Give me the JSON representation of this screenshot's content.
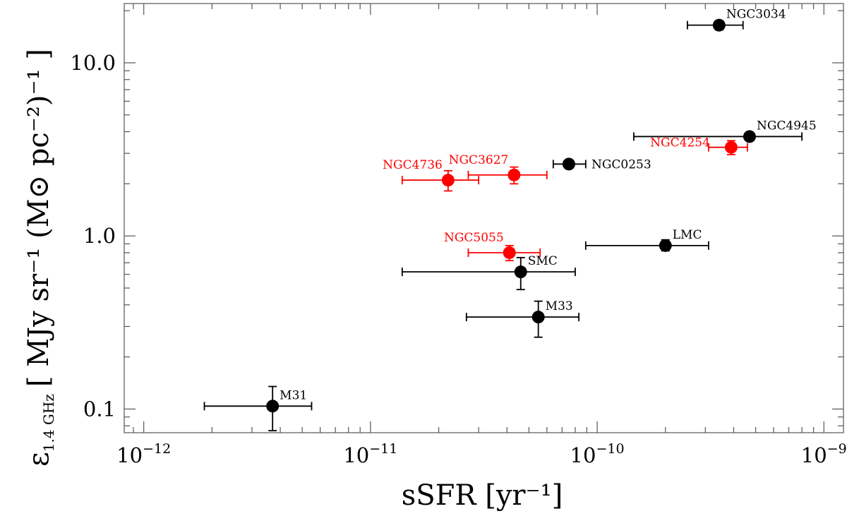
{
  "chart_data": {
    "type": "scatter",
    "title": "",
    "xlabel": "sSFR [yr⁻¹]",
    "ylabel": "ε 1.4 GHz [ MJy sr⁻¹ (M⊙ pc⁻²)⁻¹ ]",
    "ylabel_parts": {
      "symbol": "ε",
      "subscript": "1.4 GHz",
      "units": "[ MJy sr⁻¹ (M⊙ pc⁻²)⁻¹ ]"
    },
    "xscale": "log",
    "yscale": "log",
    "xlim": [
      8.2e-13,
      1.22e-09
    ],
    "ylim": [
      0.073,
      22
    ],
    "x_ticks": [
      {
        "value": 1e-12,
        "base": "10",
        "exp": "−12"
      },
      {
        "value": 1e-11,
        "base": "10",
        "exp": "−11"
      },
      {
        "value": 1e-10,
        "base": "10",
        "exp": "−10"
      },
      {
        "value": 1e-09,
        "base": "10",
        "exp": "−9"
      }
    ],
    "y_ticks": [
      {
        "value": 0.1,
        "label": "0.1"
      },
      {
        "value": 1.0,
        "label": "1.0"
      },
      {
        "value": 10.0,
        "label": "10.0"
      }
    ],
    "colors": {
      "black": "#000000",
      "red": "#ff0000"
    },
    "series": [
      {
        "name": "black",
        "color": "#000000",
        "points": [
          {
            "label": "NGC3034",
            "x": 3.45e-10,
            "y": 16.5,
            "xerr": [
              2.5e-10,
              4.4e-10
            ],
            "yerr": [
              15.5,
              17.5
            ],
            "label_pos": "upper-right"
          },
          {
            "label": "NGC4945",
            "x": 4.7e-10,
            "y": 3.75,
            "xerr": [
              1.45e-10,
              8e-10
            ],
            "yerr": null,
            "label_pos": "upper-right"
          },
          {
            "label": "NGC0253",
            "x": 7.5e-11,
            "y": 2.6,
            "xerr": [
              6.4e-11,
              8.9e-11
            ],
            "yerr": null,
            "label_pos": "right"
          },
          {
            "label": "LMC",
            "x": 2e-10,
            "y": 0.88,
            "xerr": [
              8.9e-11,
              3.1e-10
            ],
            "yerr": [
              0.82,
              0.95
            ],
            "label_pos": "upper-right"
          },
          {
            "label": "SMC",
            "x": 4.6e-11,
            "y": 0.62,
            "xerr": [
              1.38e-11,
              8e-11
            ],
            "yerr": [
              0.49,
              0.75
            ],
            "label_pos": "upper-right"
          },
          {
            "label": "M33",
            "x": 5.5e-11,
            "y": 0.34,
            "xerr": [
              2.65e-11,
              8.3e-11
            ],
            "yerr": [
              0.26,
              0.42
            ],
            "label_pos": "upper-right"
          },
          {
            "label": "M31",
            "x": 3.7e-12,
            "y": 0.104,
            "xerr": [
              1.85e-12,
              5.5e-12
            ],
            "yerr": [
              0.075,
              0.135
            ],
            "label_pos": "upper-right"
          }
        ]
      },
      {
        "name": "red",
        "color": "#ff0000",
        "points": [
          {
            "label": "NGC4254",
            "x": 3.9e-10,
            "y": 3.25,
            "xerr": [
              3.1e-10,
              4.6e-10
            ],
            "yerr": [
              2.95,
              3.55
            ],
            "label_pos": "left"
          },
          {
            "label": "NGC3627",
            "x": 4.3e-11,
            "y": 2.25,
            "xerr": [
              2.7e-11,
              6e-11
            ],
            "yerr": [
              2.0,
              2.5
            ],
            "label_pos": "upper-left"
          },
          {
            "label": "NGC4736",
            "x": 2.2e-11,
            "y": 2.1,
            "xerr": [
              1.38e-11,
              3e-11
            ],
            "yerr": [
              1.82,
              2.38
            ],
            "label_pos": "upper-left"
          },
          {
            "label": "NGC5055",
            "x": 4.1e-11,
            "y": 0.8,
            "xerr": [
              2.7e-11,
              5.6e-11
            ],
            "yerr": [
              0.72,
              0.88
            ],
            "label_pos": "upper-left"
          }
        ]
      }
    ]
  }
}
